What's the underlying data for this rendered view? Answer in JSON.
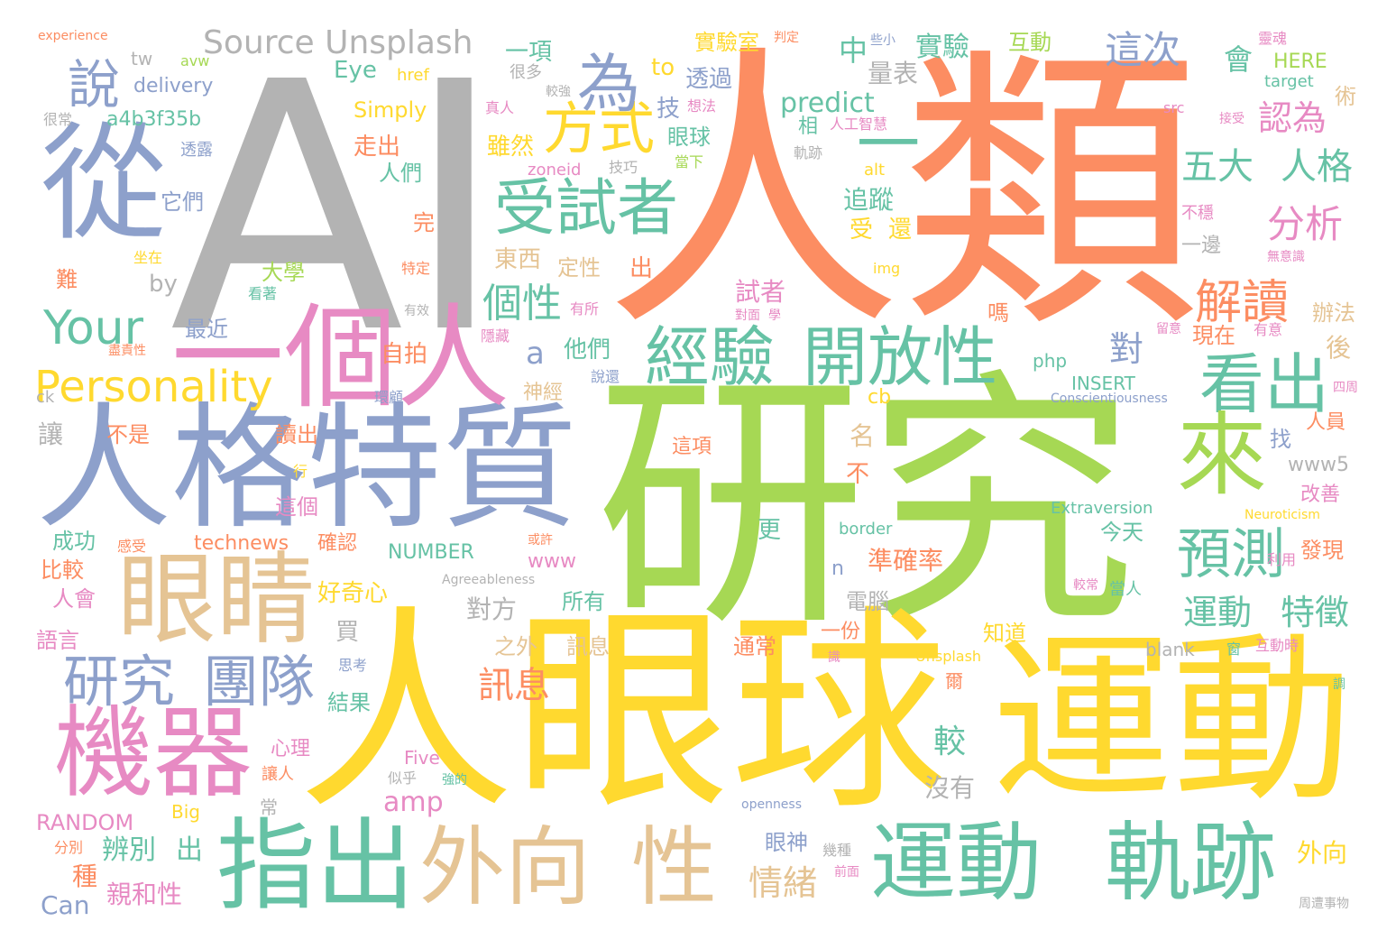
{
  "palette": {
    "gray": "#b3b3b3",
    "orange": "#fc8d62",
    "green": "#a6d854",
    "yellow": "#ffd92f",
    "blue": "#8da0cb",
    "pink": "#e78ac3",
    "teal": "#66c2a5",
    "tan": "#e5c494"
  },
  "words": [
    {
      "text": "AI",
      "color": "gray"
    },
    {
      "text": "人類",
      "color": "orange"
    },
    {
      "text": "研究",
      "color": "green"
    },
    {
      "text": "人眼球",
      "color": "yellow"
    },
    {
      "text": "運動",
      "color": "yellow"
    },
    {
      "text": "人格特質",
      "color": "blue"
    },
    {
      "text": "從",
      "color": "blue"
    },
    {
      "text": "一個人",
      "color": "pink"
    },
    {
      "text": "眼睛",
      "color": "tan"
    },
    {
      "text": "機器",
      "color": "pink"
    },
    {
      "text": "指出",
      "color": "teal"
    },
    {
      "text": "外向",
      "color": "tan"
    },
    {
      "text": "性",
      "color": "tan"
    },
    {
      "text": "運動",
      "color": "teal"
    },
    {
      "text": "軌跡",
      "color": "teal"
    },
    {
      "text": "研究",
      "color": "blue"
    },
    {
      "text": "團隊",
      "color": "blue"
    },
    {
      "text": "受試者",
      "color": "teal"
    },
    {
      "text": "方式",
      "color": "yellow"
    },
    {
      "text": "為",
      "color": "blue"
    },
    {
      "text": "一",
      "color": "teal"
    },
    {
      "text": "經驗",
      "color": "teal"
    },
    {
      "text": "開放性",
      "color": "teal"
    },
    {
      "text": "看出",
      "color": "teal"
    },
    {
      "text": "來",
      "color": "green"
    },
    {
      "text": "預測",
      "color": "teal"
    },
    {
      "text": "解讀",
      "color": "orange"
    },
    {
      "text": "Your",
      "color": "teal"
    },
    {
      "text": "Personality",
      "color": "yellow"
    },
    {
      "text": "說",
      "color": "blue"
    },
    {
      "text": "Source Unsplash",
      "color": "gray"
    },
    {
      "text": "這次",
      "color": "blue"
    },
    {
      "text": "認為",
      "color": "pink"
    },
    {
      "text": "五大",
      "color": "teal"
    },
    {
      "text": "人格",
      "color": "teal"
    },
    {
      "text": "分析",
      "color": "pink"
    },
    {
      "text": "個性",
      "color": "teal"
    },
    {
      "text": "運動",
      "color": "teal"
    },
    {
      "text": "特徵",
      "color": "teal"
    },
    {
      "text": "訊息",
      "color": "orange"
    },
    {
      "text": "情緒",
      "color": "tan"
    },
    {
      "text": "較",
      "color": "teal"
    },
    {
      "text": "amp",
      "color": "pink"
    },
    {
      "text": "辨別",
      "color": "teal"
    },
    {
      "text": "出",
      "color": "teal"
    },
    {
      "text": "親和性",
      "color": "pink"
    },
    {
      "text": "種",
      "color": "orange"
    },
    {
      "text": "Can",
      "color": "blue"
    },
    {
      "text": "RANDOM",
      "color": "pink"
    },
    {
      "text": "Big",
      "color": "yellow"
    },
    {
      "text": "分別",
      "color": "orange"
    },
    {
      "text": "常",
      "color": "gray"
    },
    {
      "text": "openness",
      "color": "blue"
    },
    {
      "text": "眼神",
      "color": "blue"
    },
    {
      "text": "幾種",
      "color": "gray"
    },
    {
      "text": "前面",
      "color": "pink"
    },
    {
      "text": "沒有",
      "color": "gray"
    },
    {
      "text": "外向",
      "color": "yellow"
    },
    {
      "text": "周遭事物",
      "color": "gray"
    },
    {
      "text": "Five",
      "color": "pink"
    },
    {
      "text": "似乎",
      "color": "gray"
    },
    {
      "text": "強的",
      "color": "teal"
    },
    {
      "text": "讓人",
      "color": "orange"
    },
    {
      "text": "心理",
      "color": "pink"
    },
    {
      "text": "結果",
      "color": "teal"
    },
    {
      "text": "思考",
      "color": "blue"
    },
    {
      "text": "語言",
      "color": "pink"
    },
    {
      "text": "人會",
      "color": "pink"
    },
    {
      "text": "比較",
      "color": "orange"
    },
    {
      "text": "成功",
      "color": "teal"
    },
    {
      "text": "感受",
      "color": "orange"
    },
    {
      "text": "technews",
      "color": "orange"
    },
    {
      "text": "確認",
      "color": "orange"
    },
    {
      "text": "NUMBER",
      "color": "teal"
    },
    {
      "text": "好奇心",
      "color": "yellow"
    },
    {
      "text": "買",
      "color": "gray"
    },
    {
      "text": "對方",
      "color": "gray"
    },
    {
      "text": "所有",
      "color": "teal"
    },
    {
      "text": "之外",
      "color": "tan"
    },
    {
      "text": "訊息",
      "color": "tan"
    },
    {
      "text": "通常",
      "color": "orange"
    },
    {
      "text": "知道",
      "color": "yellow"
    },
    {
      "text": "電腦",
      "color": "gray"
    },
    {
      "text": "一份",
      "color": "orange"
    },
    {
      "text": "Unsplash",
      "color": "yellow"
    },
    {
      "text": "blank",
      "color": "gray"
    },
    {
      "text": "窗",
      "color": "teal"
    },
    {
      "text": "互動時",
      "color": "pink"
    },
    {
      "text": "爾",
      "color": "orange"
    },
    {
      "text": "識",
      "color": "pink"
    },
    {
      "text": "調",
      "color": "teal"
    },
    {
      "text": "準確率",
      "color": "orange"
    },
    {
      "text": "今天",
      "color": "teal"
    },
    {
      "text": "發現",
      "color": "orange"
    },
    {
      "text": "利用",
      "color": "pink"
    },
    {
      "text": "較常",
      "color": "pink"
    },
    {
      "text": "當人",
      "color": "teal"
    },
    {
      "text": "改善",
      "color": "pink"
    },
    {
      "text": "Neuroticism",
      "color": "yellow"
    },
    {
      "text": "Extraversion",
      "color": "teal"
    },
    {
      "text": "www5",
      "color": "gray"
    },
    {
      "text": "人員",
      "color": "orange"
    },
    {
      "text": "找",
      "color": "blue"
    },
    {
      "text": "四周",
      "color": "pink"
    },
    {
      "text": "Conscientiousness",
      "color": "blue"
    },
    {
      "text": "INSERT",
      "color": "teal"
    },
    {
      "text": "php",
      "color": "teal"
    },
    {
      "text": "對",
      "color": "blue"
    },
    {
      "text": "現在",
      "color": "orange"
    },
    {
      "text": "留意",
      "color": "pink"
    },
    {
      "text": "有意",
      "color": "pink"
    },
    {
      "text": "後",
      "color": "tan"
    },
    {
      "text": "辦法",
      "color": "tan"
    },
    {
      "text": "嗎",
      "color": "orange"
    },
    {
      "text": "學",
      "color": "pink"
    },
    {
      "text": "對面",
      "color": "pink"
    },
    {
      "text": "試者",
      "color": "pink"
    },
    {
      "text": "img",
      "color": "yellow"
    },
    {
      "text": "無意識",
      "color": "pink"
    },
    {
      "text": "一邊",
      "color": "gray"
    },
    {
      "text": "不穩",
      "color": "pink"
    },
    {
      "text": "src",
      "color": "pink"
    },
    {
      "text": "接受",
      "color": "pink"
    },
    {
      "text": "target",
      "color": "teal"
    },
    {
      "text": "術",
      "color": "tan"
    },
    {
      "text": "HERE",
      "color": "green"
    },
    {
      "text": "靈魂",
      "color": "pink"
    },
    {
      "text": "會",
      "color": "teal"
    },
    {
      "text": "互動",
      "color": "green"
    },
    {
      "text": "實驗",
      "color": "teal"
    },
    {
      "text": "些小",
      "color": "blue"
    },
    {
      "text": "中",
      "color": "teal"
    },
    {
      "text": "量表",
      "color": "gray"
    },
    {
      "text": "predict",
      "color": "teal"
    },
    {
      "text": "相",
      "color": "teal"
    },
    {
      "text": "人工智慧",
      "color": "pink"
    },
    {
      "text": "軌跡",
      "color": "gray"
    },
    {
      "text": "alt",
      "color": "yellow"
    },
    {
      "text": "追蹤",
      "color": "teal"
    },
    {
      "text": "受",
      "color": "yellow"
    },
    {
      "text": "還",
      "color": "yellow"
    },
    {
      "text": "很",
      "color": "teal"
    },
    {
      "text": "眼球",
      "color": "teal"
    },
    {
      "text": "當下",
      "color": "green"
    },
    {
      "text": "想法",
      "color": "pink"
    },
    {
      "text": "技",
      "color": "blue"
    },
    {
      "text": "透過",
      "color": "blue"
    },
    {
      "text": "to",
      "color": "yellow"
    },
    {
      "text": "實驗室",
      "color": "yellow"
    },
    {
      "text": "判定",
      "color": "orange"
    },
    {
      "text": "一項",
      "color": "teal"
    },
    {
      "text": "很多",
      "color": "gray"
    },
    {
      "text": "較強",
      "color": "gray"
    },
    {
      "text": "真人",
      "color": "pink"
    },
    {
      "text": "雖然",
      "color": "yellow"
    },
    {
      "text": "zoneid",
      "color": "pink"
    },
    {
      "text": "技巧",
      "color": "gray"
    },
    {
      "text": "定性",
      "color": "tan"
    },
    {
      "text": "東西",
      "color": "tan"
    },
    {
      "text": "出",
      "color": "orange"
    },
    {
      "text": "有所",
      "color": "pink"
    },
    {
      "text": "他們",
      "color": "teal"
    },
    {
      "text": "a",
      "color": "blue"
    },
    {
      "text": "說還",
      "color": "blue"
    },
    {
      "text": "神經",
      "color": "tan"
    },
    {
      "text": "這項",
      "color": "orange"
    },
    {
      "text": "名",
      "color": "tan"
    },
    {
      "text": "不",
      "color": "orange"
    },
    {
      "text": "border",
      "color": "teal"
    },
    {
      "text": "更",
      "color": "teal"
    },
    {
      "text": "n",
      "color": "blue"
    },
    {
      "text": "www",
      "color": "pink"
    },
    {
      "text": "或許",
      "color": "orange"
    },
    {
      "text": "Agreeableness",
      "color": "gray"
    },
    {
      "text": "cb",
      "color": "yellow"
    },
    {
      "text": "Eye",
      "color": "teal"
    },
    {
      "text": "href",
      "color": "yellow"
    },
    {
      "text": "Simply",
      "color": "yellow"
    },
    {
      "text": "tw",
      "color": "gray"
    },
    {
      "text": "avw",
      "color": "green"
    },
    {
      "text": "delivery",
      "color": "blue"
    },
    {
      "text": "a4b3f35b",
      "color": "teal"
    },
    {
      "text": "走出",
      "color": "orange"
    },
    {
      "text": "人們",
      "color": "teal"
    },
    {
      "text": "完",
      "color": "orange"
    },
    {
      "text": "特定",
      "color": "orange"
    },
    {
      "text": "by",
      "color": "gray"
    },
    {
      "text": "大學",
      "color": "green"
    },
    {
      "text": "看著",
      "color": "teal"
    },
    {
      "text": "有效",
      "color": "gray"
    },
    {
      "text": "最近",
      "color": "blue"
    },
    {
      "text": "自拍",
      "color": "orange"
    },
    {
      "text": "隱藏",
      "color": "pink"
    },
    {
      "text": "環顧",
      "color": "blue"
    },
    {
      "text": "讀出",
      "color": "orange"
    },
    {
      "text": "行",
      "color": "yellow"
    },
    {
      "text": "這個",
      "color": "pink"
    },
    {
      "text": "不是",
      "color": "orange"
    },
    {
      "text": "讓",
      "color": "gray"
    },
    {
      "text": "ck",
      "color": "gray"
    },
    {
      "text": "盡責性",
      "color": "orange"
    },
    {
      "text": "難",
      "color": "orange"
    },
    {
      "text": "坐在",
      "color": "yellow"
    },
    {
      "text": "它們",
      "color": "blue"
    },
    {
      "text": "透露",
      "color": "blue"
    },
    {
      "text": "很常",
      "color": "gray"
    },
    {
      "text": "experience",
      "color": "orange"
    }
  ]
}
